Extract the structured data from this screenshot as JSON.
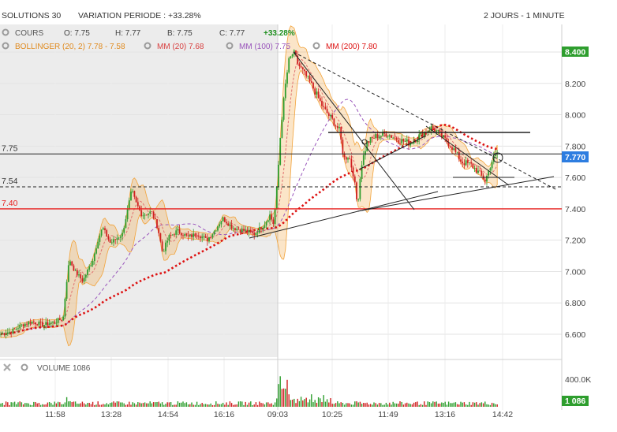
{
  "header": {
    "title": "SOLUTIONS 30",
    "variation": "VARIATION PERIODE : +33.28%",
    "period": "2 JOURS - 1 MINUTE"
  },
  "legend": {
    "cours": {
      "label": "COURS",
      "o": "O: 7.75",
      "h": "H: 7.77",
      "b": "B: 7.75",
      "c": "C: 7.77",
      "change": "+33.28%"
    },
    "bollinger": "BOLLINGER (20, 2)  7.78 - 7.58",
    "mm20": "MM (20)  7.68",
    "mm100": "MM (100)  7.75",
    "mm200": "MM (200)  7.80",
    "volume": "VOLUME  1086"
  },
  "colors": {
    "background": "#ffffff",
    "day1_shade": "#ececec",
    "up": "#2e9e2e",
    "down": "#d02020",
    "bollinger": "#f2a33a",
    "mm20": "#e07070",
    "mm100": "#9955bb",
    "mm200": "#dd1111",
    "support": "#e8201e",
    "price_tag": "#2d7de0",
    "volume_tag": "#2e9e2e",
    "change_green": "#1f8f1f"
  },
  "chart_data": {
    "type": "candlestick",
    "title": "SOLUTIONS 30",
    "x_ticks": [
      "11:58",
      "13:28",
      "14:54",
      "16:16",
      "09:03",
      "10:25",
      "11:49",
      "13:16",
      "14:42"
    ],
    "y_ticks": [
      "8.400",
      "8.200",
      "8.000",
      "7.800",
      "7.600",
      "7.400",
      "7.200",
      "7.000",
      "6.800",
      "6.600"
    ],
    "ylim": [
      6.52,
      8.48
    ],
    "horizontal_levels": [
      {
        "label": "7.75",
        "value": 7.75,
        "style": "solid-black"
      },
      {
        "label": "7.54",
        "value": 7.54,
        "style": "dashed-black"
      },
      {
        "label": "7.40",
        "value": 7.4,
        "style": "solid-red"
      }
    ],
    "last_price_label": "7.770",
    "last_price": 7.77,
    "volume": {
      "y_ticks": [
        "400.0K"
      ],
      "last_label": "1 086",
      "last": 1086
    },
    "price_path": [
      [
        0,
        6.6
      ],
      [
        15,
        6.62
      ],
      [
        28,
        6.66
      ],
      [
        40,
        6.68
      ],
      [
        55,
        6.66
      ],
      [
        70,
        6.68
      ],
      [
        80,
        6.7
      ],
      [
        84,
        6.92
      ],
      [
        88,
        7.08
      ],
      [
        95,
        7.0
      ],
      [
        105,
        6.94
      ],
      [
        118,
        7.08
      ],
      [
        124,
        7.2
      ],
      [
        130,
        7.28
      ],
      [
        140,
        7.18
      ],
      [
        155,
        7.24
      ],
      [
        162,
        7.4
      ],
      [
        167,
        7.52
      ],
      [
        172,
        7.44
      ],
      [
        180,
        7.36
      ],
      [
        192,
        7.38
      ],
      [
        200,
        7.28
      ],
      [
        206,
        7.12
      ],
      [
        214,
        7.22
      ],
      [
        225,
        7.26
      ],
      [
        238,
        7.22
      ],
      [
        250,
        7.24
      ],
      [
        262,
        7.2
      ],
      [
        272,
        7.26
      ],
      [
        282,
        7.34
      ],
      [
        295,
        7.28
      ],
      [
        310,
        7.26
      ],
      [
        322,
        7.24
      ],
      [
        335,
        7.3
      ],
      [
        342,
        7.36
      ],
      [
        347,
        7.3
      ],
      [
        352,
        7.6
      ],
      [
        356,
        7.92
      ],
      [
        362,
        8.2
      ],
      [
        366,
        8.34
      ],
      [
        372,
        8.4
      ],
      [
        378,
        8.32
      ],
      [
        386,
        8.26
      ],
      [
        396,
        8.18
      ],
      [
        410,
        8.04
      ],
      [
        422,
        7.96
      ],
      [
        430,
        7.9
      ],
      [
        436,
        7.72
      ],
      [
        442,
        7.74
      ],
      [
        448,
        7.62
      ],
      [
        453,
        7.42
      ],
      [
        458,
        7.68
      ],
      [
        465,
        7.82
      ],
      [
        475,
        7.86
      ],
      [
        490,
        7.88
      ],
      [
        505,
        7.84
      ],
      [
        520,
        7.82
      ],
      [
        535,
        7.88
      ],
      [
        548,
        7.92
      ],
      [
        560,
        7.86
      ],
      [
        572,
        7.8
      ],
      [
        585,
        7.7
      ],
      [
        597,
        7.68
      ],
      [
        605,
        7.64
      ],
      [
        615,
        7.58
      ],
      [
        623,
        7.7
      ],
      [
        632,
        7.77
      ]
    ]
  }
}
